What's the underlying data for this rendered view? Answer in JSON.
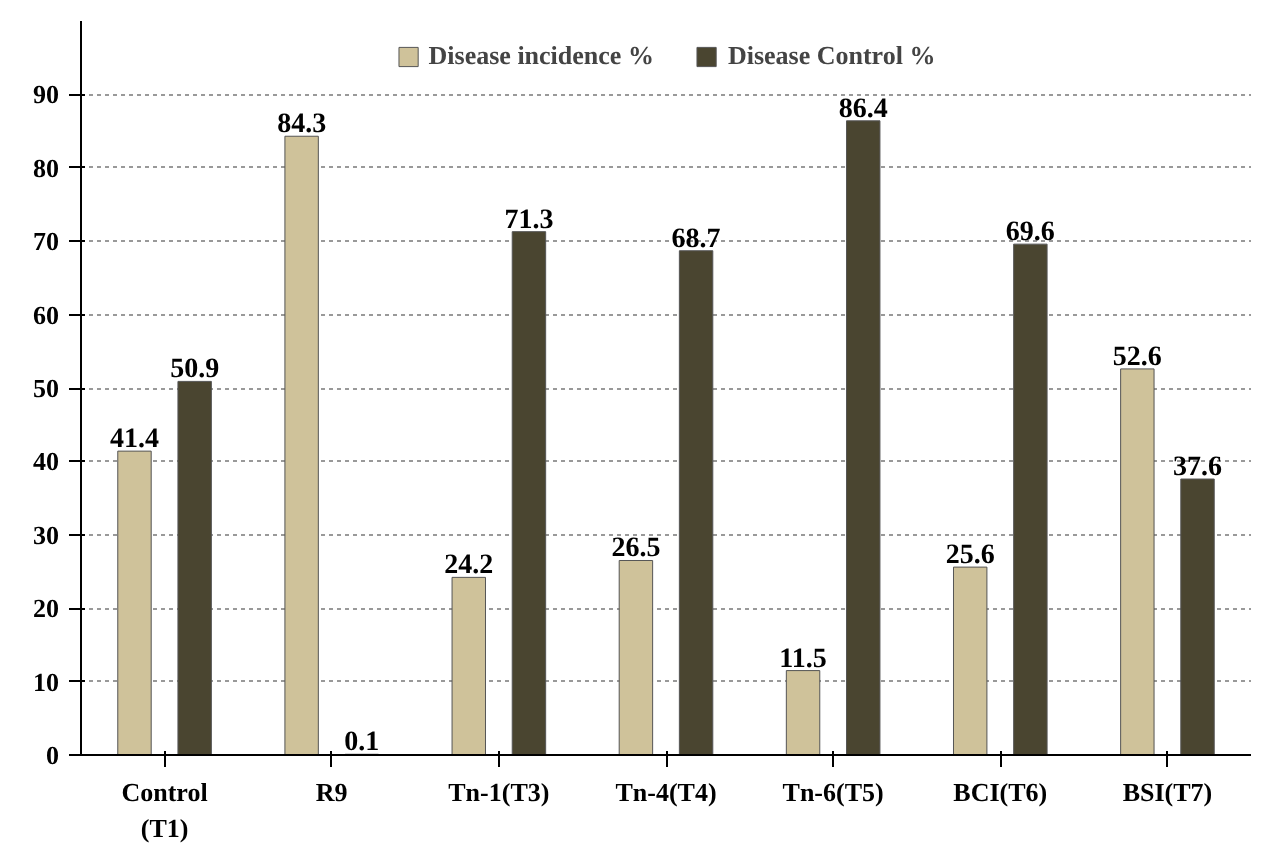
{
  "chart_data": {
    "type": "bar",
    "categories": [
      "Control (T1)",
      "R9",
      "Tn-1(T3)",
      "Tn-4(T4)",
      "Tn-6(T5)",
      "BCI(T6)",
      "BSI(T7)"
    ],
    "series": [
      {
        "name": "Disease incidence %",
        "color": "#cfc29a",
        "values": [
          41.4,
          84.3,
          24.2,
          26.5,
          11.5,
          25.6,
          52.6
        ]
      },
      {
        "name": "Disease Control %",
        "color": "#4a4530",
        "values": [
          50.9,
          0.1,
          71.3,
          68.7,
          86.4,
          69.6,
          37.6
        ]
      }
    ],
    "ylim": [
      0,
      100
    ],
    "yticks": [
      0,
      10,
      20,
      30,
      40,
      50,
      60,
      70,
      80,
      90
    ],
    "grid": "y",
    "legend": "top",
    "data_labels": true
  }
}
